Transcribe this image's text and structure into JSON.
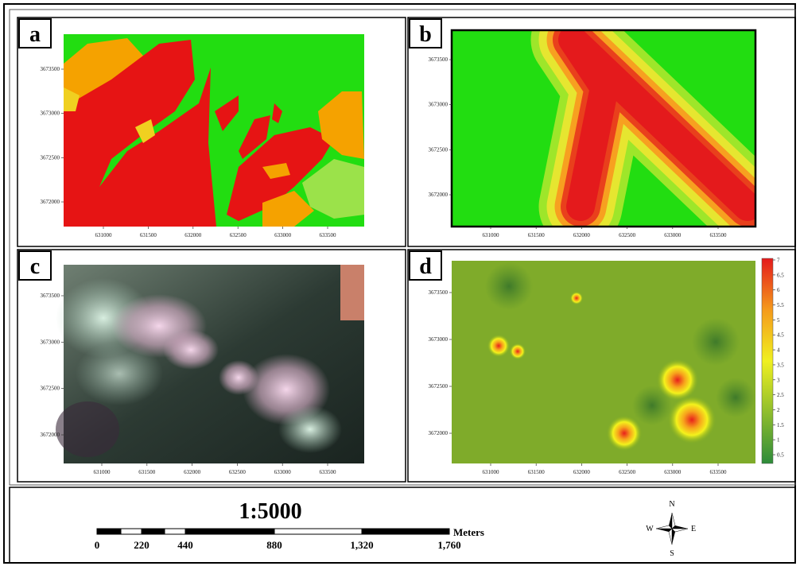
{
  "panels": [
    {
      "label": "a",
      "xticks": [
        "631000",
        "631500",
        "632000",
        "632500",
        "633000",
        "633500"
      ],
      "yticks": [
        "3673500",
        "3673000",
        "3672500",
        "3672000"
      ]
    },
    {
      "label": "b",
      "xticks": [
        "631000",
        "631500",
        "632000",
        "632500",
        "633000",
        "633500"
      ],
      "yticks": [
        "3673500",
        "3673000",
        "3672500",
        "3672000"
      ]
    },
    {
      "label": "c",
      "xticks": [
        "631000",
        "631500",
        "632000",
        "632500",
        "633000",
        "633500"
      ],
      "yticks": [
        "3673500",
        "3673000",
        "3672500",
        "3672000"
      ]
    },
    {
      "label": "d",
      "xticks": [
        "631000",
        "631500",
        "632000",
        "632500",
        "633000",
        "633500"
      ],
      "yticks": [
        "3673500",
        "3673000",
        "3672500",
        "3672000"
      ]
    }
  ],
  "colorbar": {
    "ticks": [
      "7",
      "6.5",
      "6",
      "5.5",
      "5",
      "4.5",
      "4",
      "3.5",
      "3",
      "2.5",
      "2",
      "1.5",
      "1",
      "0.5"
    ]
  },
  "scale": {
    "ratio": "1:5000",
    "unit": "Meters",
    "labels": [
      "0",
      "220",
      "440",
      "880",
      "1,320",
      "1,760"
    ]
  },
  "compass": {
    "n": "N",
    "s": "S",
    "e": "E",
    "w": "W"
  }
}
